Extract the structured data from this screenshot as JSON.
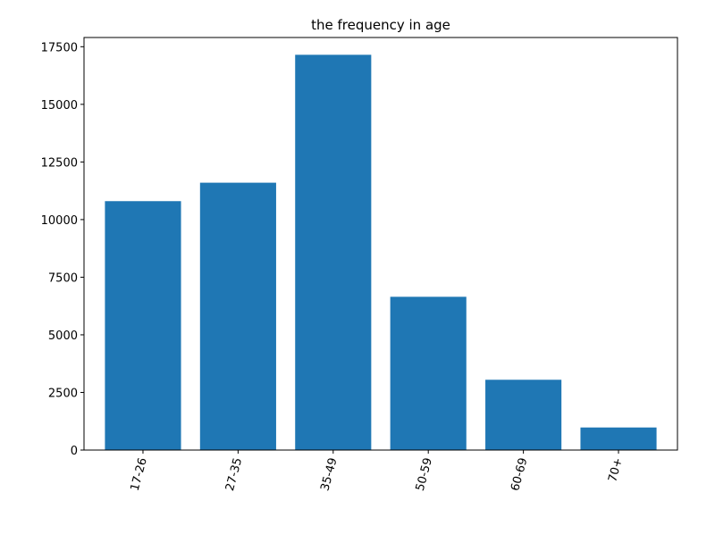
{
  "chart_data": {
    "type": "bar",
    "title": "the frequency in age",
    "xlabel": "",
    "ylabel": "",
    "categories": [
      "17-26",
      "27-35",
      "35-49",
      "50-59",
      "60-69",
      "70+"
    ],
    "values": [
      10800,
      11600,
      17150,
      6650,
      3050,
      980
    ],
    "ylim": [
      0,
      17900
    ],
    "yticks": [
      0,
      2500,
      5000,
      7500,
      10000,
      12500,
      15000,
      17500
    ],
    "ytick_labels": [
      "0",
      "2500",
      "5000",
      "7500",
      "10000",
      "12500",
      "15000",
      "17500"
    ],
    "bar_color": "#1f77b4",
    "grid": false,
    "xtick_rotation": "rotated ~75°"
  }
}
